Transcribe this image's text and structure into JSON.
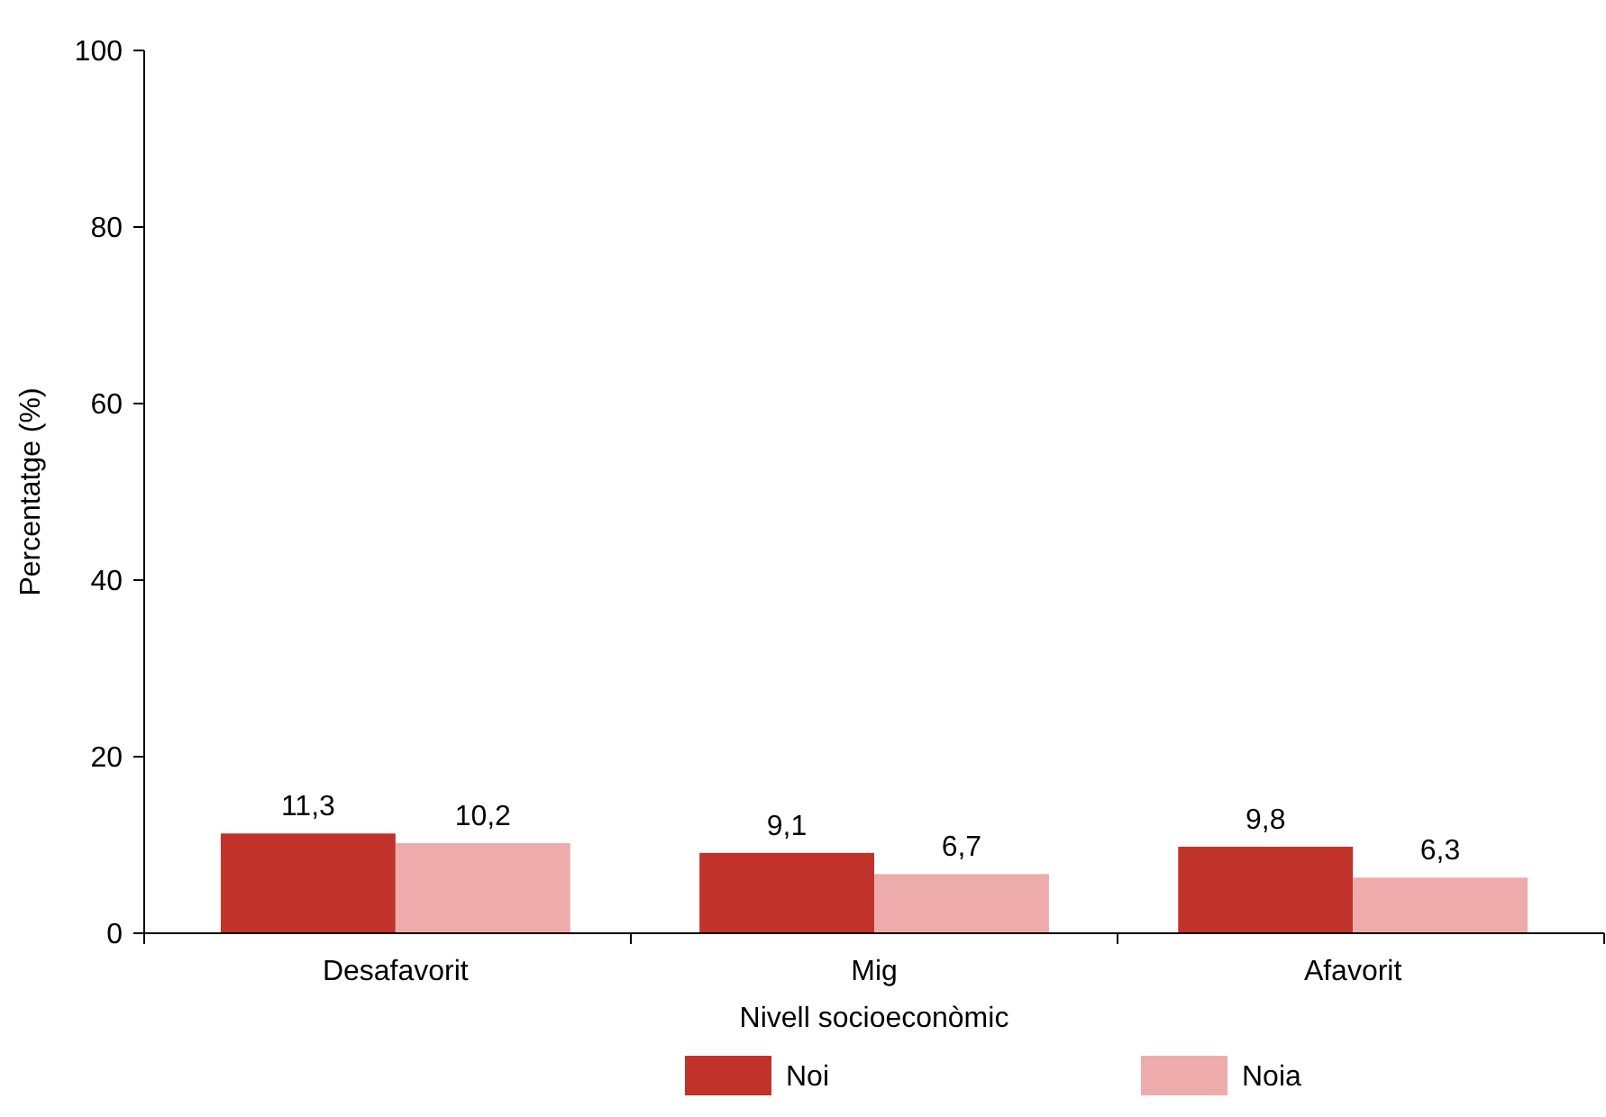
{
  "chart_data": {
    "type": "bar",
    "xlabel": "Nivell socioeconòmic",
    "ylabel": "Percentatge (%)",
    "categories": [
      "Desafavorit",
      "Mig",
      "Afavorit"
    ],
    "series": [
      {
        "name": "Noi",
        "color": "#c1322a",
        "values": [
          11.3,
          9.1,
          9.8
        ],
        "value_labels": [
          "11,3",
          "9,1",
          "9,8"
        ]
      },
      {
        "name": "Noia",
        "color": "#edabac",
        "values": [
          10.2,
          6.7,
          6.3
        ],
        "value_labels": [
          "10,2",
          "6,7",
          "6,3"
        ]
      }
    ],
    "ylim": [
      0,
      100
    ],
    "yticks": [
      0,
      20,
      40,
      60,
      80,
      100
    ],
    "grid": false,
    "legend": "bottom"
  }
}
